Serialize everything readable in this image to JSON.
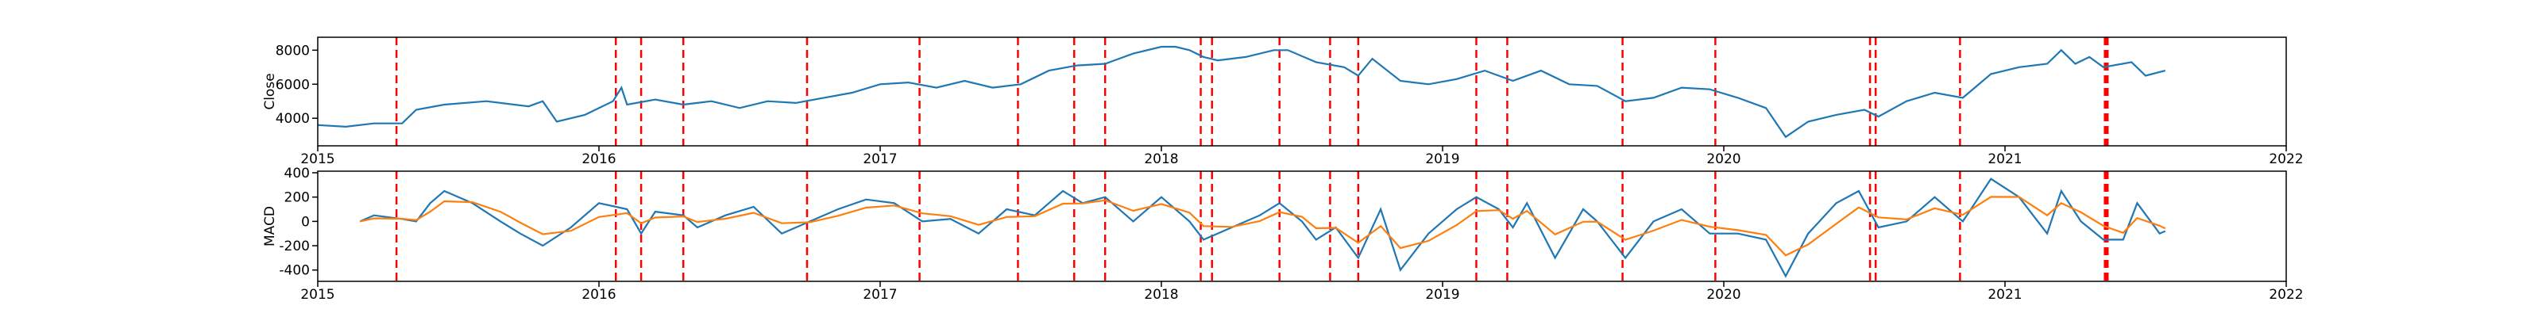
{
  "chart_data": [
    {
      "type": "line",
      "ylabel": "Close",
      "x": [
        2015.0,
        2015.1,
        2015.2,
        2015.3,
        2015.35,
        2015.45,
        2015.6,
        2015.75,
        2015.8,
        2015.85,
        2015.95,
        2016.05,
        2016.08,
        2016.1,
        2016.2,
        2016.3,
        2016.4,
        2016.5,
        2016.6,
        2016.7,
        2016.8,
        2016.9,
        2017.0,
        2017.1,
        2017.2,
        2017.3,
        2017.4,
        2017.5,
        2017.6,
        2017.7,
        2017.8,
        2017.9,
        2018.0,
        2018.05,
        2018.1,
        2018.15,
        2018.2,
        2018.3,
        2018.4,
        2018.45,
        2018.55,
        2018.65,
        2018.7,
        2018.75,
        2018.85,
        2018.95,
        2019.05,
        2019.15,
        2019.25,
        2019.35,
        2019.45,
        2019.55,
        2019.65,
        2019.75,
        2019.85,
        2019.95,
        2020.05,
        2020.15,
        2020.22,
        2020.3,
        2020.4,
        2020.5,
        2020.55,
        2020.65,
        2020.75,
        2020.85,
        2020.95,
        2021.05,
        2021.15,
        2021.2,
        2021.25,
        2021.3,
        2021.35,
        2021.45,
        2021.5,
        2021.57
      ],
      "series": [
        {
          "color": "#1f77b4",
          "values": [
            3600,
            3500,
            3700,
            3700,
            4500,
            4800,
            5000,
            4700,
            5000,
            3800,
            4200,
            5000,
            5800,
            4800,
            5100,
            4800,
            5000,
            4600,
            5000,
            4900,
            5200,
            5500,
            6000,
            6100,
            5800,
            6200,
            5800,
            6000,
            6800,
            7100,
            7200,
            7800,
            8200,
            8200,
            8000,
            7600,
            7400,
            7600,
            8000,
            8000,
            7300,
            7000,
            6500,
            7500,
            6200,
            6000,
            6300,
            6800,
            6200,
            6800,
            6000,
            5900,
            5000,
            5200,
            5800,
            5700,
            5200,
            4600,
            2900,
            3800,
            4200,
            4500,
            4100,
            5000,
            5500,
            5200,
            6600,
            7000,
            7200,
            8000,
            7200,
            7600,
            7000,
            7300,
            6500,
            6800
          ]
        }
      ],
      "xlim": [
        2015,
        2022
      ],
      "xticks": [
        2015,
        2016,
        2017,
        2018,
        2019,
        2020,
        2021,
        2022
      ],
      "ylim": [
        2380,
        8760
      ],
      "yticks": [
        4000,
        6000,
        8000
      ],
      "vlines": [
        2015.28,
        2016.06,
        2016.15,
        2016.3,
        2016.74,
        2017.14,
        2017.49,
        2017.69,
        2017.8,
        2018.14,
        2018.18,
        2018.42,
        2018.6,
        2018.7,
        2019.12,
        2019.23,
        2019.64,
        2019.97,
        2020.52,
        2020.54,
        2020.84,
        2021.355,
        2021.36,
        2021.365
      ],
      "vline_color": "#ff0000"
    },
    {
      "type": "line",
      "ylabel": "MACD",
      "x": [
        2015.15,
        2015.2,
        2015.3,
        2015.35,
        2015.4,
        2015.45,
        2015.55,
        2015.65,
        2015.72,
        2015.8,
        2015.9,
        2016.0,
        2016.1,
        2016.15,
        2016.2,
        2016.3,
        2016.35,
        2016.45,
        2016.55,
        2016.65,
        2016.75,
        2016.85,
        2016.95,
        2017.05,
        2017.15,
        2017.25,
        2017.35,
        2017.45,
        2017.55,
        2017.65,
        2017.72,
        2017.8,
        2017.9,
        2018.0,
        2018.1,
        2018.15,
        2018.25,
        2018.35,
        2018.42,
        2018.5,
        2018.55,
        2018.62,
        2018.7,
        2018.78,
        2018.85,
        2018.95,
        2019.05,
        2019.12,
        2019.2,
        2019.25,
        2019.3,
        2019.4,
        2019.5,
        2019.55,
        2019.65,
        2019.75,
        2019.85,
        2019.95,
        2020.05,
        2020.15,
        2020.22,
        2020.3,
        2020.4,
        2020.48,
        2020.55,
        2020.65,
        2020.75,
        2020.85,
        2020.95,
        2021.05,
        2021.15,
        2021.2,
        2021.27,
        2021.35,
        2021.42,
        2021.47,
        2021.55,
        2021.57
      ],
      "series": [
        {
          "color": "#1f77b4",
          "values": [
            0,
            50,
            20,
            0,
            150,
            250,
            150,
            0,
            -100,
            -200,
            -50,
            150,
            100,
            -100,
            80,
            50,
            -50,
            50,
            120,
            -100,
            0,
            100,
            180,
            150,
            0,
            20,
            -100,
            100,
            50,
            250,
            150,
            200,
            0,
            200,
            0,
            -150,
            -50,
            50,
            150,
            0,
            -150,
            -50,
            -300,
            100,
            -400,
            -100,
            100,
            200,
            100,
            -50,
            150,
            -300,
            100,
            0,
            -300,
            0,
            100,
            -100,
            -100,
            -150,
            -450,
            -100,
            150,
            250,
            -50,
            0,
            200,
            0,
            350,
            200,
            -100,
            250,
            0,
            -150,
            -150,
            150,
            -100,
            -80
          ]
        },
        {
          "color": "#ff7f0e",
          "values": [
            0,
            25,
            22,
            11,
            80,
            165,
            158,
            79,
            -10,
            -105,
            -78,
            36,
            68,
            -16,
            32,
            41,
            -5,
            22,
            71,
            -15,
            -7,
            46,
            113,
            131,
            66,
            43,
            -28,
            36,
            43,
            146,
            148,
            174,
            87,
            143,
            72,
            -39,
            -45,
            3,
            76,
            38,
            -56,
            -53,
            -176,
            -38,
            -219,
            -160,
            -30,
            85,
            92,
            21,
            86,
            -107,
            -3,
            -2,
            -151,
            -76,
            12,
            -44,
            -72,
            -111,
            -280,
            -190,
            -20,
            115,
            33,
            16,
            108,
            54,
            202,
            201,
            50,
            150,
            75,
            -37,
            -94,
            28,
            -36,
            -58
          ]
        }
      ],
      "xlim": [
        2015,
        2022
      ],
      "xticks": [
        2015,
        2016,
        2017,
        2018,
        2019,
        2020,
        2021,
        2022
      ],
      "ylim": [
        -493,
        413
      ],
      "yticks": [
        -400,
        -200,
        0,
        200,
        400
      ],
      "vlines": [
        2015.28,
        2016.06,
        2016.15,
        2016.3,
        2016.74,
        2017.14,
        2017.49,
        2017.69,
        2017.8,
        2018.14,
        2018.18,
        2018.42,
        2018.6,
        2018.7,
        2019.12,
        2019.23,
        2019.64,
        2019.97,
        2020.52,
        2020.54,
        2020.84,
        2021.355,
        2021.36,
        2021.365
      ],
      "vline_color": "#ff0000"
    }
  ]
}
